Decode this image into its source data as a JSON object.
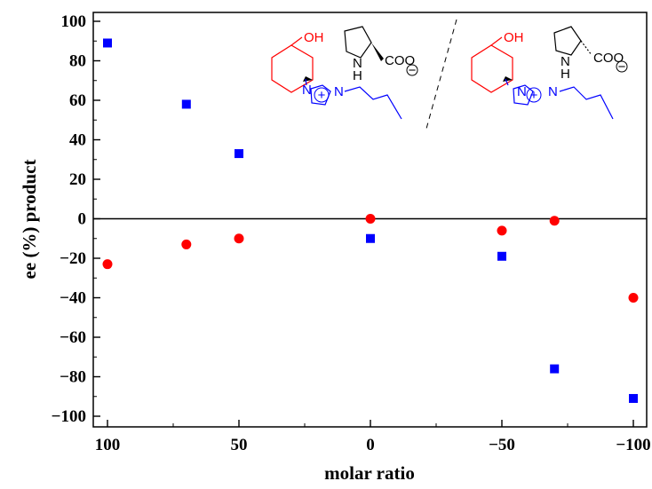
{
  "chart_data": {
    "type": "scatter",
    "xlabel": "molar ratio",
    "ylabel": "ee (%) product",
    "xlim": [
      100,
      -100
    ],
    "ylim": [
      -105,
      105
    ],
    "x_axis_reversed": true,
    "x_ticks": [
      100,
      50,
      0,
      -50,
      -100
    ],
    "y_ticks": [
      100,
      80,
      60,
      40,
      20,
      0,
      -20,
      -40,
      -60,
      -80,
      -100
    ],
    "series": [
      {
        "marker": "square",
        "color": "#0000ff",
        "x": [
          100,
          70,
          50,
          0,
          -50,
          -70,
          -100
        ],
        "y": [
          89,
          58,
          33,
          -10,
          -19,
          -76,
          -91
        ]
      },
      {
        "marker": "circle",
        "color": "#ff0000",
        "x": [
          100,
          70,
          50,
          0,
          -50,
          -70,
          -100
        ],
        "y": [
          -23,
          -13,
          -10,
          0,
          -6,
          -1,
          -40
        ]
      }
    ],
    "zero_line": true,
    "grid": false,
    "inset_structures": {
      "left": {
        "hydroxyl_label": "OH",
        "amine_label": "N",
        "amine_h_label": "H",
        "carboxylate_label": "COO",
        "imidazolium_n1": "N",
        "imidazolium_n2": "N",
        "plus_sign": "+",
        "minus_sign": "−"
      },
      "right": {
        "hydroxyl_label": "OH",
        "amine_label": "N",
        "amine_h_label": "H",
        "carboxylate_label": "COO",
        "imidazolium_n1": "N",
        "imidazolium_n2": "N",
        "plus_sign": "+",
        "minus_sign": "−"
      }
    }
  }
}
